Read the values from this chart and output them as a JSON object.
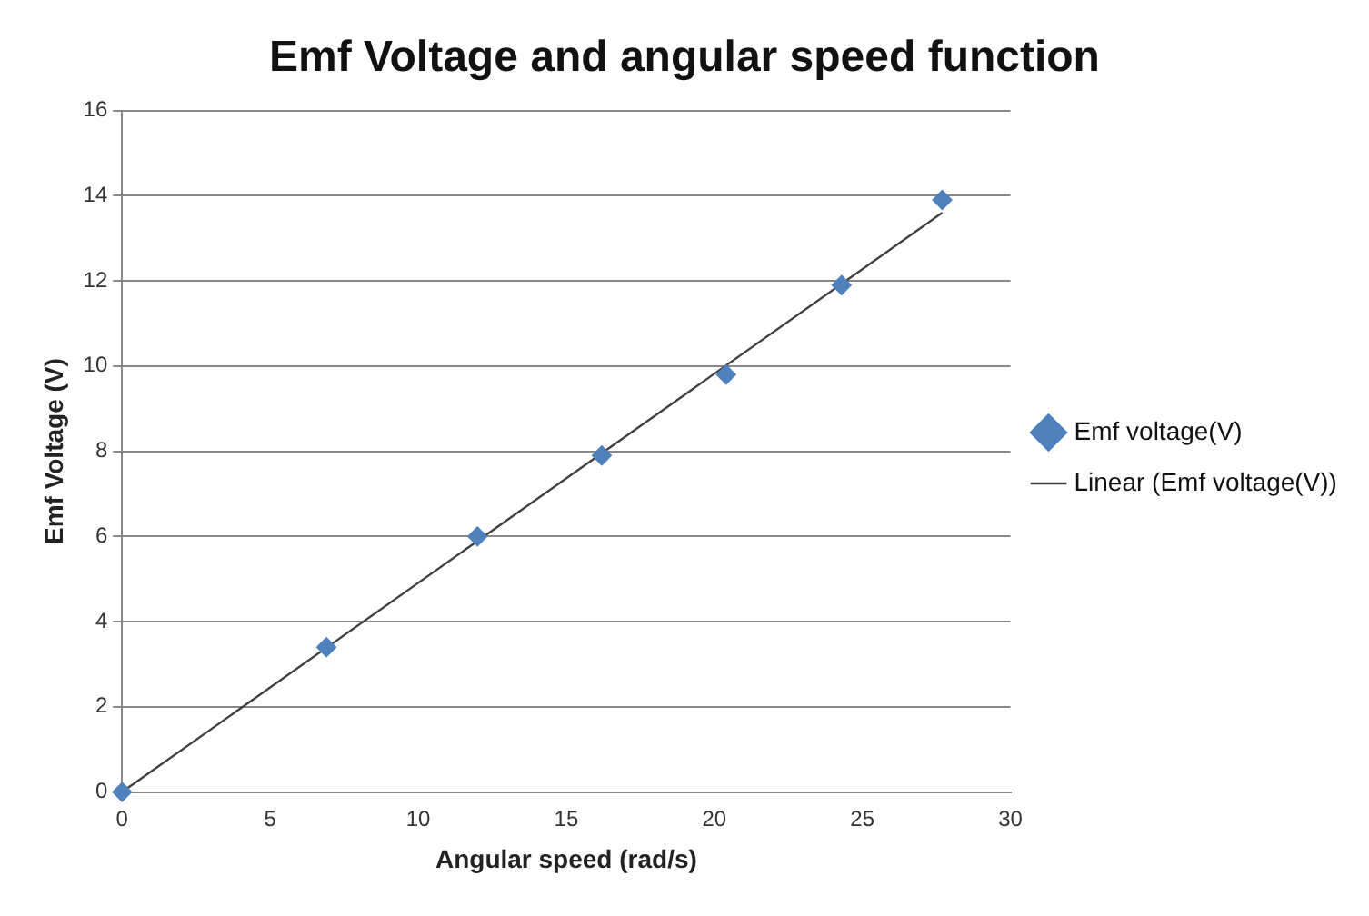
{
  "chart_data": {
    "type": "scatter",
    "title": "Emf Voltage and angular speed function",
    "xlabel": "Angular speed (rad/s)",
    "ylabel": "Emf Voltage (V)",
    "x": [
      0,
      6.9,
      12,
      16.2,
      20.4,
      24.3,
      27.7
    ],
    "series": [
      {
        "name": "Emf voltage(V)",
        "color": "#4f81bd",
        "values": [
          0,
          3.4,
          6,
          7.9,
          9.8,
          11.9,
          13.9
        ],
        "marker": "diamond"
      },
      {
        "name": "Linear (Emf voltage(V))",
        "type": "line",
        "color": "#404040",
        "x": [
          0,
          27.7
        ],
        "values": [
          0,
          13.6
        ],
        "marker": "none",
        "line_style": "solid"
      }
    ],
    "xlim": [
      0,
      30
    ],
    "xticks": [
      0,
      5,
      10,
      15,
      20,
      25,
      30
    ],
    "ylim": [
      0,
      16
    ],
    "yticks": [
      0,
      2,
      4,
      6,
      8,
      10,
      12,
      14,
      16
    ],
    "grid": "y",
    "legend": "right"
  }
}
